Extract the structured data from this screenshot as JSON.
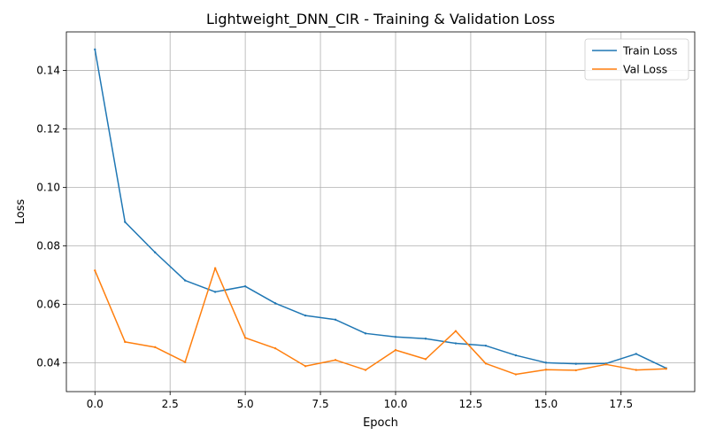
{
  "chart_data": {
    "type": "line",
    "title": "Lightweight_DNN_CIR - Training & Validation Loss",
    "xlabel": "Epoch",
    "ylabel": "Loss",
    "xlim": [
      -0.95,
      19.95
    ],
    "ylim": [
      0.0302,
      0.1532
    ],
    "x_ticks": [
      0.0,
      2.5,
      5.0,
      7.5,
      10.0,
      12.5,
      15.0,
      17.5
    ],
    "x_tick_labels": [
      "0.0",
      "2.5",
      "5.0",
      "7.5",
      "10.0",
      "12.5",
      "15.0",
      "17.5"
    ],
    "y_ticks": [
      0.04,
      0.06,
      0.08,
      0.1,
      0.12,
      0.14
    ],
    "y_tick_labels": [
      "0.04",
      "0.06",
      "0.08",
      "0.10",
      "0.12",
      "0.14"
    ],
    "grid": true,
    "legend_position": "top-right",
    "x": [
      0,
      1,
      2,
      3,
      4,
      5,
      6,
      7,
      8,
      9,
      10,
      11,
      12,
      13,
      14,
      15,
      16,
      17,
      18,
      19
    ],
    "series": [
      {
        "name": "Train Loss",
        "color": "#1f77b4",
        "values": [
          0.1472,
          0.0882,
          0.0778,
          0.0682,
          0.0643,
          0.0662,
          0.0604,
          0.0562,
          0.0548,
          0.0501,
          0.0489,
          0.0483,
          0.0467,
          0.0459,
          0.0426,
          0.0401,
          0.0397,
          0.0398,
          0.0431,
          0.0382
        ]
      },
      {
        "name": "Val Loss",
        "color": "#ff7f0e",
        "values": [
          0.0716,
          0.0472,
          0.0454,
          0.0403,
          0.0724,
          0.0486,
          0.045,
          0.0389,
          0.041,
          0.0376,
          0.0444,
          0.0413,
          0.0509,
          0.0398,
          0.0361,
          0.0377,
          0.0375,
          0.0395,
          0.0376,
          0.038
        ]
      }
    ]
  }
}
